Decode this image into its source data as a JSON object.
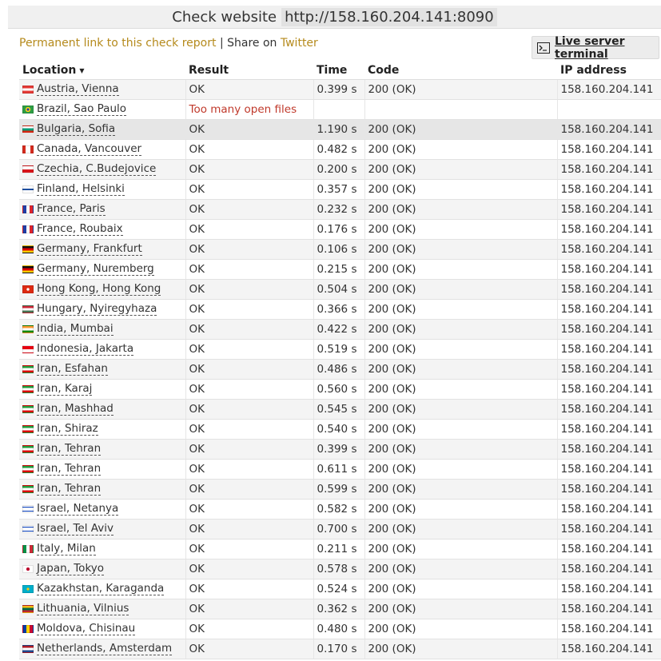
{
  "header": {
    "title": "Check website",
    "url": "http://158.160.204.141:8090"
  },
  "links": {
    "permalink": "Permanent link to this check report",
    "separator": " | ",
    "share_prefix": "Share on ",
    "twitter": "Twitter"
  },
  "terminal": {
    "label": "Live server terminal",
    "icon": "terminal-icon"
  },
  "table": {
    "columns": {
      "location": "Location",
      "result": "Result",
      "time": "Time",
      "code": "Code",
      "ip": "IP address"
    },
    "sort_caret": "▼",
    "rows": [
      {
        "location": "Austria, Vienna",
        "flag": "at",
        "result": "OK",
        "time": "0.399 s",
        "code": "200 (OK)",
        "ip": "158.160.204.141"
      },
      {
        "location": "Brazil, Sao Paulo",
        "flag": "br",
        "result": "Too many open files",
        "time": "",
        "code": "",
        "ip": "",
        "error": true
      },
      {
        "location": "Bulgaria, Sofia",
        "flag": "bg",
        "result": "OK",
        "time": "1.190 s",
        "code": "200 (OK)",
        "ip": "158.160.204.141"
      },
      {
        "location": "Canada, Vancouver",
        "flag": "ca",
        "result": "OK",
        "time": "0.482 s",
        "code": "200 (OK)",
        "ip": "158.160.204.141"
      },
      {
        "location": "Czechia, C.Budejovice",
        "flag": "cz",
        "result": "OK",
        "time": "0.200 s",
        "code": "200 (OK)",
        "ip": "158.160.204.141"
      },
      {
        "location": "Finland, Helsinki",
        "flag": "fi",
        "result": "OK",
        "time": "0.357 s",
        "code": "200 (OK)",
        "ip": "158.160.204.141"
      },
      {
        "location": "France, Paris",
        "flag": "fr",
        "result": "OK",
        "time": "0.232 s",
        "code": "200 (OK)",
        "ip": "158.160.204.141"
      },
      {
        "location": "France, Roubaix",
        "flag": "fr",
        "result": "OK",
        "time": "0.176 s",
        "code": "200 (OK)",
        "ip": "158.160.204.141"
      },
      {
        "location": "Germany, Frankfurt",
        "flag": "de",
        "result": "OK",
        "time": "0.106 s",
        "code": "200 (OK)",
        "ip": "158.160.204.141"
      },
      {
        "location": "Germany, Nuremberg",
        "flag": "de",
        "result": "OK",
        "time": "0.215 s",
        "code": "200 (OK)",
        "ip": "158.160.204.141"
      },
      {
        "location": "Hong Kong, Hong Kong",
        "flag": "hk",
        "result": "OK",
        "time": "0.504 s",
        "code": "200 (OK)",
        "ip": "158.160.204.141"
      },
      {
        "location": "Hungary, Nyiregyhaza",
        "flag": "hu",
        "result": "OK",
        "time": "0.366 s",
        "code": "200 (OK)",
        "ip": "158.160.204.141"
      },
      {
        "location": "India, Mumbai",
        "flag": "in",
        "result": "OK",
        "time": "0.422 s",
        "code": "200 (OK)",
        "ip": "158.160.204.141"
      },
      {
        "location": "Indonesia, Jakarta",
        "flag": "id",
        "result": "OK",
        "time": "0.519 s",
        "code": "200 (OK)",
        "ip": "158.160.204.141"
      },
      {
        "location": "Iran, Esfahan",
        "flag": "ir",
        "result": "OK",
        "time": "0.486 s",
        "code": "200 (OK)",
        "ip": "158.160.204.141"
      },
      {
        "location": "Iran, Karaj",
        "flag": "ir",
        "result": "OK",
        "time": "0.560 s",
        "code": "200 (OK)",
        "ip": "158.160.204.141"
      },
      {
        "location": "Iran, Mashhad",
        "flag": "ir",
        "result": "OK",
        "time": "0.545 s",
        "code": "200 (OK)",
        "ip": "158.160.204.141"
      },
      {
        "location": "Iran, Shiraz",
        "flag": "ir",
        "result": "OK",
        "time": "0.540 s",
        "code": "200 (OK)",
        "ip": "158.160.204.141"
      },
      {
        "location": "Iran, Tehran",
        "flag": "ir",
        "result": "OK",
        "time": "0.399 s",
        "code": "200 (OK)",
        "ip": "158.160.204.141"
      },
      {
        "location": "Iran, Tehran",
        "flag": "ir",
        "result": "OK",
        "time": "0.611 s",
        "code": "200 (OK)",
        "ip": "158.160.204.141"
      },
      {
        "location": "Iran, Tehran",
        "flag": "ir",
        "result": "OK",
        "time": "0.599 s",
        "code": "200 (OK)",
        "ip": "158.160.204.141"
      },
      {
        "location": "Israel, Netanya",
        "flag": "il",
        "result": "OK",
        "time": "0.582 s",
        "code": "200 (OK)",
        "ip": "158.160.204.141"
      },
      {
        "location": "Israel, Tel Aviv",
        "flag": "il",
        "result": "OK",
        "time": "0.700 s",
        "code": "200 (OK)",
        "ip": "158.160.204.141"
      },
      {
        "location": "Italy, Milan",
        "flag": "it",
        "result": "OK",
        "time": "0.211 s",
        "code": "200 (OK)",
        "ip": "158.160.204.141"
      },
      {
        "location": "Japan, Tokyo",
        "flag": "jp",
        "result": "OK",
        "time": "0.578 s",
        "code": "200 (OK)",
        "ip": "158.160.204.141"
      },
      {
        "location": "Kazakhstan, Karaganda",
        "flag": "kz",
        "result": "OK",
        "time": "0.524 s",
        "code": "200 (OK)",
        "ip": "158.160.204.141"
      },
      {
        "location": "Lithuania, Vilnius",
        "flag": "lt",
        "result": "OK",
        "time": "0.362 s",
        "code": "200 (OK)",
        "ip": "158.160.204.141"
      },
      {
        "location": "Moldova, Chisinau",
        "flag": "md",
        "result": "OK",
        "time": "0.480 s",
        "code": "200 (OK)",
        "ip": "158.160.204.141"
      },
      {
        "location": "Netherlands, Amsterdam",
        "flag": "nl",
        "result": "OK",
        "time": "0.170 s",
        "code": "200 (OK)",
        "ip": "158.160.204.141"
      }
    ]
  },
  "colors": {
    "link": "#b58a1c",
    "error": "#c0392b",
    "header_bg": "#f0f0f0"
  }
}
